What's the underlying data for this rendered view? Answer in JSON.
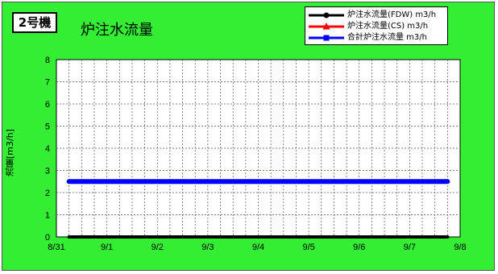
{
  "badge": "2号機",
  "title": "炉注水流量",
  "colors": {
    "background": "#33ee33",
    "fdw": "#000000",
    "cs": "#ff0000",
    "total": "#0000ff"
  },
  "chart_data": {
    "type": "line",
    "x_tick_labels": [
      "8/31",
      "9/1",
      "9/2",
      "9/3",
      "9/4",
      "9/5",
      "9/6",
      "9/7",
      "9/8"
    ],
    "ylabel": "流量[m3/h]",
    "ylim": [
      0,
      8
    ],
    "y_ticks": [
      0,
      1,
      2,
      3,
      4,
      5,
      6,
      7,
      8
    ],
    "grid": true,
    "legend_position": "top-right",
    "series": [
      {
        "name": "炉注水流量(FDW) m3/h",
        "color": "#000000",
        "marker": "circle",
        "x_range": [
          "8/31 06:00",
          "9/7 18:00"
        ],
        "values": [
          0,
          0
        ]
      },
      {
        "name": "炉注水流量(CS) m3/h",
        "color": "#ff0000",
        "marker": "triangle",
        "x_range": [
          "8/31 06:00",
          "9/7 18:00"
        ],
        "values": [
          0,
          0
        ]
      },
      {
        "name": "合計炉注水流量 m3/h",
        "color": "#0000ff",
        "marker": "square",
        "x_range": [
          "8/31 06:00",
          "9/7 18:00"
        ],
        "values": [
          2.5,
          2.5
        ]
      }
    ]
  }
}
